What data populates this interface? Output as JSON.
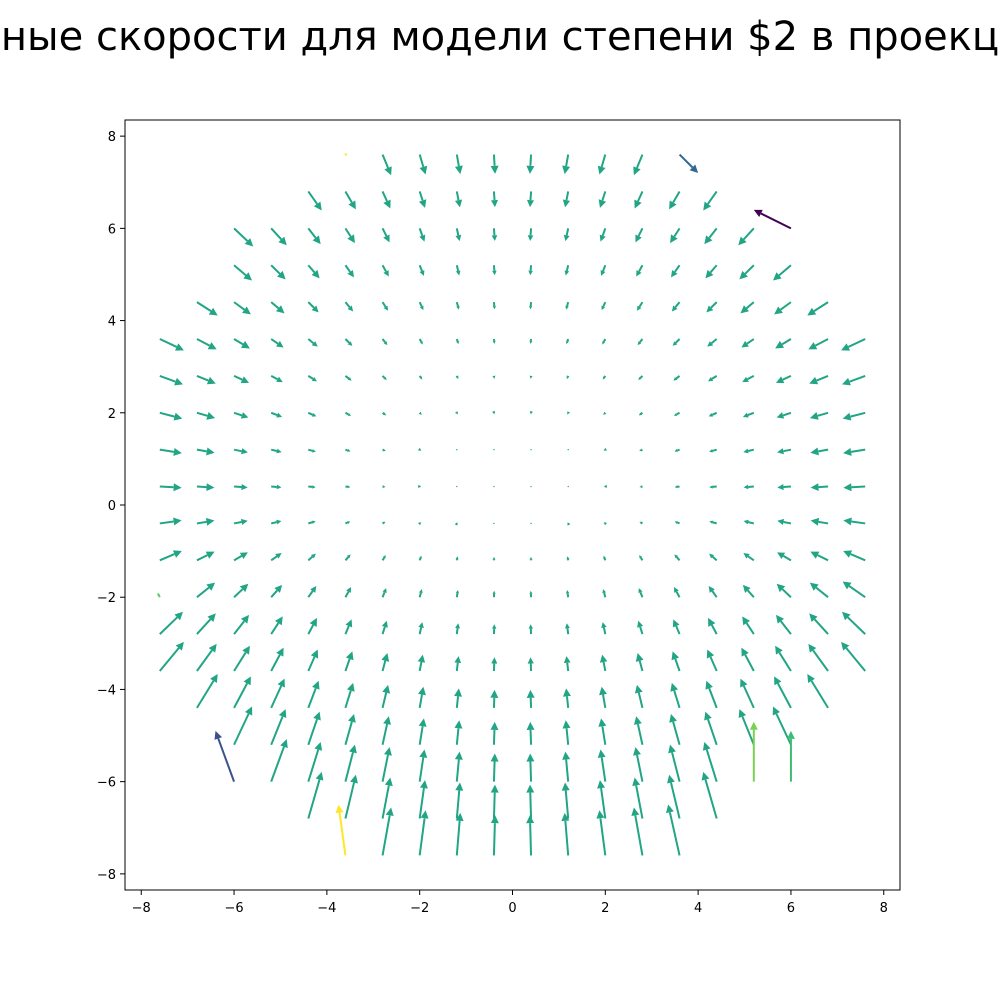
{
  "chart_data": {
    "type": "quiver",
    "title": "ные скорости для модели степени $2 в проекц",
    "xlabel": "",
    "ylabel": "",
    "xlim": [
      -8.35,
      8.35
    ],
    "ylim": [
      -8.35,
      8.35
    ],
    "xticks": [
      -8,
      -6,
      -4,
      -2,
      0,
      2,
      4,
      6,
      8
    ],
    "yticks": [
      -8,
      -6,
      -4,
      -2,
      0,
      2,
      4,
      6,
      8
    ],
    "xtick_labels": [
      "−8",
      "−6",
      "−4",
      "−2",
      "0",
      "2",
      "4",
      "6",
      "8"
    ],
    "ytick_labels": [
      "−8",
      "−6",
      "−4",
      "−2",
      "0",
      "2",
      "4",
      "6",
      "8"
    ],
    "grid": false,
    "colormap": "viridis",
    "sampling": {
      "lattice_x": [
        -7.6,
        -6.8,
        -6.0,
        -5.2,
        -4.4,
        -3.6,
        -2.8,
        -2.0,
        -1.2,
        -0.4,
        0.4,
        1.2,
        2.0,
        2.8,
        3.6,
        4.4,
        5.2,
        6.0,
        6.8,
        7.6
      ],
      "lattice_y": [
        -7.6,
        -6.8,
        -6.0,
        -5.2,
        -4.4,
        -3.6,
        -2.8,
        -2.0,
        -1.2,
        -0.4,
        0.4,
        1.2,
        2.0,
        2.8,
        3.6,
        4.4,
        5.2,
        6.0,
        6.8,
        7.6
      ],
      "field_radius": 8.5
    },
    "field": {
      "description": "radial inward field, strongest near the rim, with upward drift in lower half",
      "inward_gain": 0.065,
      "inward_power": 2,
      "upward_gain": 0.05,
      "typical_color": "#21a585"
    },
    "special_arrows": [
      {
        "x": 6.0,
        "y": 6.0,
        "u": -0.8,
        "v": 0.4,
        "color": "#440154"
      },
      {
        "x": 3.6,
        "y": 7.6,
        "u": 0.4,
        "v": -0.4,
        "color": "#31688e"
      },
      {
        "x": -6.0,
        "y": -6.0,
        "u": -0.4,
        "v": 1.1,
        "color": "#3b528b"
      },
      {
        "x": -3.6,
        "y": -7.6,
        "u": -0.15,
        "v": 1.1,
        "color": "#fde725"
      },
      {
        "x": -3.6,
        "y": 7.6,
        "u": 0.05,
        "v": 0.02,
        "color": "#fde725"
      },
      {
        "x": -7.6,
        "y": -2.0,
        "u": -0.05,
        "v": 0.1,
        "color": "#5ec962"
      },
      {
        "x": 6.0,
        "y": -6.0,
        "u": 0.0,
        "v": 1.1,
        "color": "#3fbc73"
      },
      {
        "x": 5.2,
        "y": -6.0,
        "u": 0.0,
        "v": 1.3,
        "color": "#7ad151"
      }
    ]
  }
}
